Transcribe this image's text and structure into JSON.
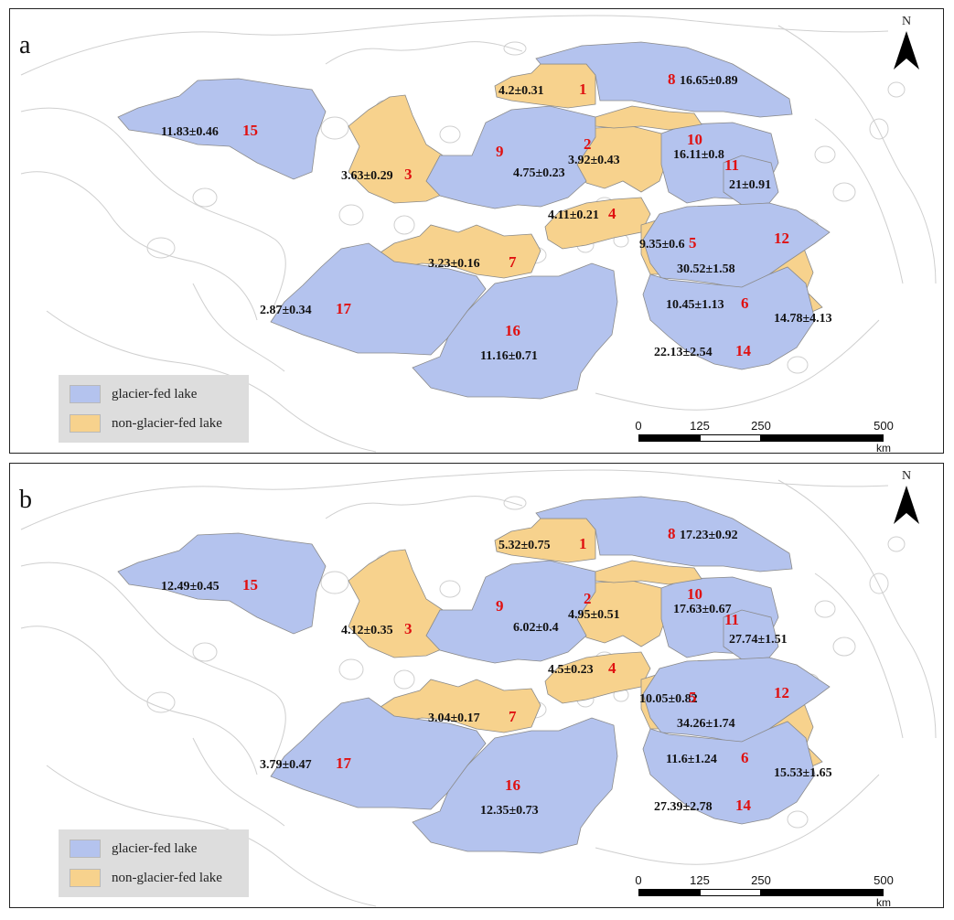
{
  "panels": [
    {
      "label": "a",
      "regions": [
        {
          "id": "1",
          "value": "4.2±0.31",
          "type": "non-glacier-fed"
        },
        {
          "id": "2",
          "value": "3.92±0.43",
          "type": "non-glacier-fed"
        },
        {
          "id": "3",
          "value": "3.63±0.29",
          "type": "non-glacier-fed"
        },
        {
          "id": "4",
          "value": "4.11±0.21",
          "type": "non-glacier-fed"
        },
        {
          "id": "5",
          "value": "9.35±0.6",
          "type": "non-glacier-fed"
        },
        {
          "id": "6",
          "value": "10.45±1.13",
          "type": "non-glacier-fed"
        },
        {
          "id": "7",
          "value": "3.23±0.16",
          "type": "non-glacier-fed"
        },
        {
          "id": "8",
          "value": "16.65±0.89",
          "type": "glacier-fed"
        },
        {
          "id": "9",
          "value": "4.75±0.23",
          "type": "glacier-fed"
        },
        {
          "id": "10",
          "value": "16.11±0.8",
          "type": "glacier-fed"
        },
        {
          "id": "11",
          "value": "21±0.91",
          "type": "glacier-fed"
        },
        {
          "id": "12",
          "value": "30.52±1.58",
          "type": "glacier-fed"
        },
        {
          "id": "13",
          "value": "14.78±4.13",
          "type": "non-glacier-fed"
        },
        {
          "id": "14",
          "value": "22.13±2.54",
          "type": "glacier-fed"
        },
        {
          "id": "15",
          "value": "11.83±0.46",
          "type": "glacier-fed"
        },
        {
          "id": "16",
          "value": "11.16±0.71",
          "type": "glacier-fed"
        },
        {
          "id": "17",
          "value": "2.87±0.34",
          "type": "glacier-fed"
        }
      ]
    },
    {
      "label": "b",
      "regions": [
        {
          "id": "1",
          "value": "5.32±0.75",
          "type": "non-glacier-fed"
        },
        {
          "id": "2",
          "value": "4.95±0.51",
          "type": "non-glacier-fed"
        },
        {
          "id": "3",
          "value": "4.12±0.35",
          "type": "non-glacier-fed"
        },
        {
          "id": "4",
          "value": "4.5±0.23",
          "type": "non-glacier-fed"
        },
        {
          "id": "5",
          "value": "10.05±0.82",
          "type": "non-glacier-fed"
        },
        {
          "id": "6",
          "value": "11.6±1.24",
          "type": "non-glacier-fed"
        },
        {
          "id": "7",
          "value": "3.04±0.17",
          "type": "non-glacier-fed"
        },
        {
          "id": "8",
          "value": "17.23±0.92",
          "type": "glacier-fed"
        },
        {
          "id": "9",
          "value": "6.02±0.4",
          "type": "glacier-fed"
        },
        {
          "id": "10",
          "value": "17.63±0.67",
          "type": "glacier-fed"
        },
        {
          "id": "11",
          "value": "27.74±1.51",
          "type": "glacier-fed"
        },
        {
          "id": "12",
          "value": "34.26±1.74",
          "type": "glacier-fed"
        },
        {
          "id": "13",
          "value": "15.53±1.65",
          "type": "non-glacier-fed"
        },
        {
          "id": "14",
          "value": "27.39±2.78",
          "type": "glacier-fed"
        },
        {
          "id": "15",
          "value": "12.49±0.45",
          "type": "glacier-fed"
        },
        {
          "id": "16",
          "value": "12.35±0.73",
          "type": "glacier-fed"
        },
        {
          "id": "17",
          "value": "3.79±0.47",
          "type": "glacier-fed"
        }
      ]
    }
  ],
  "legend": {
    "items": [
      {
        "label": "glacier-fed lake",
        "color": "#b4c3ee"
      },
      {
        "label": "non-glacier-fed lake",
        "color": "#f7d28d"
      }
    ]
  },
  "north_arrow": {
    "label": "N",
    "icon": "north-arrow-icon"
  },
  "scale_bar": {
    "ticks": [
      "0",
      "125",
      "250",
      "500"
    ],
    "unit": "km"
  },
  "colors": {
    "glacier": "#b4c3ee",
    "nonglacier": "#f7d28d",
    "boundary": "#cfcfcf",
    "outline": "#8a8a8a",
    "number": "#e01010"
  }
}
